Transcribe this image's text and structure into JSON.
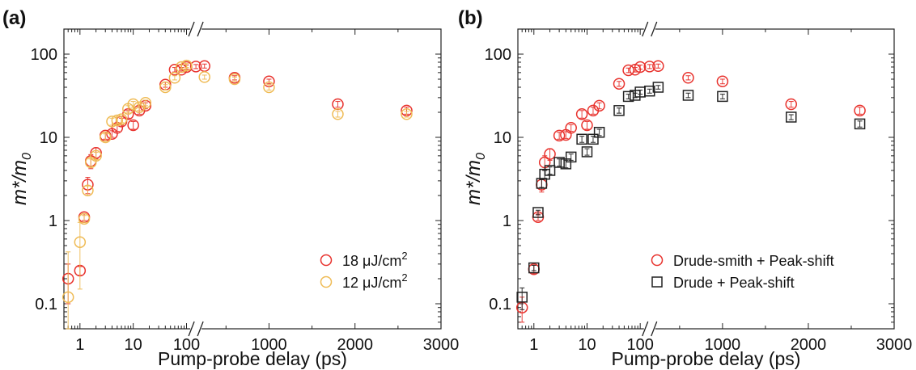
{
  "chart_data": [
    {
      "panel_label": "(a)",
      "type": "scatter",
      "xscale": "broken: log 0.5–150 ps, linear 150–3000 ps (axis break)",
      "yscale": "log",
      "ylim": [
        0.05,
        200
      ],
      "xlabel": "Pump-probe delay (ps)",
      "ylabel_main": "m*/m",
      "ylabel_sub": "0",
      "x_ticks": [
        "1",
        "10",
        "100",
        "1000",
        "2000",
        "3000"
      ],
      "y_ticks": [
        "0.1",
        "1",
        "10",
        "100"
      ],
      "legend_position": "bottom-right",
      "series": [
        {
          "name": "18 μJ/cm2",
          "label_main": "18 μJ/cm",
          "label_sup": "2",
          "marker": "circle",
          "color": "#e8322d",
          "x": [
            0.6,
            1.0,
            1.2,
            1.4,
            1.6,
            2.0,
            3.0,
            4.0,
            5.0,
            6.0,
            8.0,
            10.0,
            13.0,
            17.0,
            40.0,
            60.0,
            80.0,
            100.0,
            150.0,
            250.0,
            600.0,
            1000.0,
            1800.0,
            2600.0
          ],
          "y": [
            0.2,
            0.25,
            1.1,
            2.7,
            5.2,
            6.5,
            10.5,
            11.0,
            13.0,
            15.5,
            19.0,
            14.0,
            21.0,
            24.0,
            43.0,
            65.0,
            65.0,
            70.0,
            71.0,
            72.0,
            52.0,
            47.0,
            25.0,
            21.0
          ],
          "err": [
            0.1,
            0.03,
            0.1,
            0.6,
            1.0,
            1.0,
            1.0,
            1.0,
            1.2,
            1.5,
            2.0,
            1.5,
            2.0,
            2.0,
            3.0,
            4.0,
            4.0,
            4.0,
            4.0,
            4.0,
            3.0,
            3.0,
            2.0,
            2.0
          ]
        },
        {
          "name": "12 μJ/cm2",
          "label_main": "12 μJ/cm",
          "label_sup": "2",
          "marker": "circle",
          "color": "#efbb55",
          "x": [
            0.6,
            1.0,
            1.2,
            1.4,
            1.6,
            2.0,
            3.0,
            4.0,
            5.0,
            6.0,
            8.0,
            10.0,
            13.0,
            17.0,
            40.0,
            60.0,
            80.0,
            100.0,
            250.0,
            600.0,
            1000.0,
            1800.0,
            2600.0
          ],
          "y": [
            0.12,
            0.55,
            1.05,
            2.3,
            5.0,
            6.0,
            10.0,
            15.5,
            16.0,
            16.5,
            22.0,
            25.0,
            23.0,
            26.0,
            40.0,
            52.0,
            70.0,
            73.0,
            53.0,
            50.0,
            40.0,
            19.0,
            19.0
          ],
          "err": [
            0.3,
            0.4,
            0.1,
            0.3,
            0.5,
            0.6,
            1.0,
            1.5,
            1.5,
            1.5,
            2.0,
            2.0,
            2.0,
            2.0,
            3.0,
            3.0,
            4.0,
            4.0,
            3.0,
            3.0,
            3.0,
            1.5,
            1.5
          ]
        }
      ]
    },
    {
      "panel_label": "(b)",
      "type": "scatter",
      "xscale": "broken: log 0.5–150 ps, linear 150–3000 ps (axis break)",
      "yscale": "log",
      "ylim": [
        0.05,
        200
      ],
      "xlabel": "Pump-probe delay (ps)",
      "ylabel_main": "m*/m",
      "ylabel_sub": "0",
      "x_ticks": [
        "1",
        "10",
        "100",
        "1000",
        "2000",
        "3000"
      ],
      "y_ticks": [
        "0.1",
        "1",
        "10",
        "100"
      ],
      "legend_position": "bottom-right",
      "series": [
        {
          "name": "Drude-smith + Peak-shift",
          "label_main": "Drude-smith + Peak-shift",
          "label_sup": "",
          "marker": "circle",
          "color": "#e8322d",
          "x": [
            0.6,
            1.0,
            1.2,
            1.4,
            1.6,
            2.0,
            3.0,
            4.0,
            5.0,
            8.0,
            10.0,
            13.0,
            17.0,
            40.0,
            60.0,
            80.0,
            100.0,
            150.0,
            250.0,
            600.0,
            1000.0,
            1800.0,
            2600.0
          ],
          "y": [
            0.09,
            0.26,
            1.1,
            2.7,
            5.0,
            6.3,
            10.5,
            10.7,
            13.0,
            19.0,
            14.0,
            21.0,
            24.0,
            44.0,
            64.0,
            65.0,
            70.0,
            71.0,
            72.0,
            52.0,
            47.0,
            25.0,
            21.0
          ],
          "err": [
            0.03,
            0.03,
            0.1,
            0.5,
            1.0,
            1.0,
            1.0,
            1.0,
            1.2,
            2.0,
            1.5,
            2.0,
            2.0,
            3.0,
            4.0,
            4.0,
            4.0,
            4.0,
            4.0,
            3.0,
            3.0,
            2.0,
            2.0
          ]
        },
        {
          "name": "Drude + Peak-shift",
          "label_main": "Drude + Peak-shift",
          "label_sup": "",
          "marker": "square",
          "color": "#222222",
          "x": [
            0.6,
            1.0,
            1.2,
            1.4,
            1.6,
            2.0,
            3.0,
            4.0,
            5.0,
            8.0,
            10.0,
            13.0,
            17.0,
            40.0,
            60.0,
            80.0,
            100.0,
            150.0,
            250.0,
            600.0,
            1000.0,
            1800.0,
            2600.0
          ],
          "y": [
            0.12,
            0.27,
            1.25,
            2.8,
            3.6,
            4.0,
            5.0,
            4.8,
            5.8,
            9.5,
            6.7,
            9.5,
            11.5,
            21.0,
            31.0,
            32.0,
            35.0,
            36.0,
            40.0,
            32.0,
            31.0,
            17.5,
            14.5
          ],
          "err": [
            0.035,
            0.02,
            0.08,
            0.3,
            0.4,
            0.4,
            0.5,
            0.5,
            0.5,
            0.8,
            0.6,
            0.8,
            1.0,
            1.5,
            2.0,
            2.0,
            2.0,
            2.0,
            2.0,
            2.0,
            2.0,
            1.2,
            1.2
          ]
        }
      ]
    }
  ]
}
